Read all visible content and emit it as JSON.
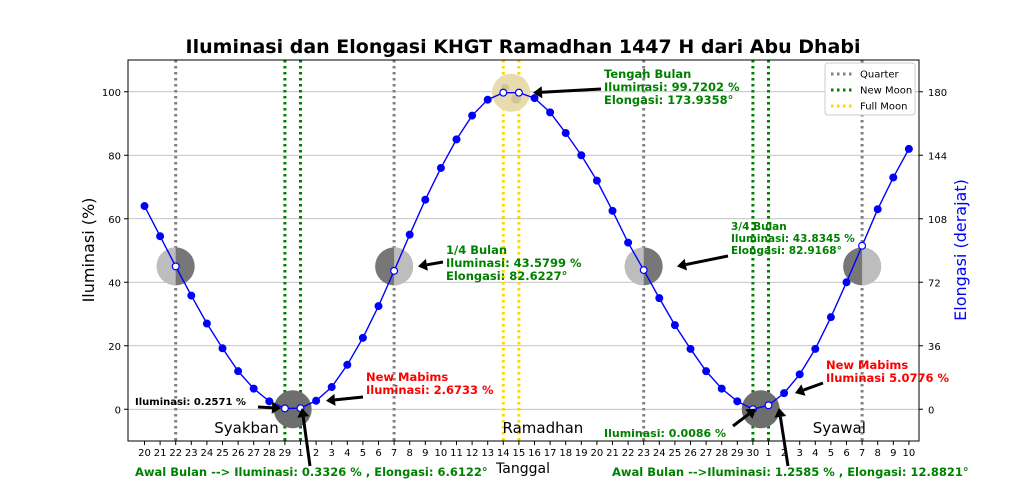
{
  "chart_data": {
    "type": "line",
    "title": "Iluminasi dan Elongasi KHGT Ramadhan 1447 H dari Abu Dhabi",
    "xlabel": "Tanggal",
    "ylabel": "Iluminasi (%)",
    "y2label": "Elongasi (derajat)",
    "ylim": [
      -10,
      110
    ],
    "y2lim": [
      -18,
      198
    ],
    "yticks": [
      0,
      20,
      40,
      60,
      80,
      100
    ],
    "y2ticks": [
      0,
      36,
      72,
      108,
      144,
      180
    ],
    "grid": "horizontal",
    "legend_position": "top-right",
    "x_tick_labels": [
      "20",
      "21",
      "22",
      "23",
      "24",
      "25",
      "26",
      "27",
      "28",
      "29",
      "1",
      "2",
      "3",
      "4",
      "5",
      "6",
      "7",
      "8",
      "9",
      "10",
      "11",
      "12",
      "13",
      "14",
      "15",
      "16",
      "17",
      "18",
      "19",
      "20",
      "21",
      "22",
      "23",
      "24",
      "25",
      "26",
      "27",
      "28",
      "29",
      "30",
      "1",
      "2",
      "3",
      "4",
      "5",
      "6",
      "7",
      "8",
      "9",
      "10"
    ],
    "series": [
      {
        "color": "#0000ff",
        "values": [
          64.0,
          54.5,
          45.0,
          35.8,
          27.0,
          19.2,
          12.0,
          6.5,
          2.5,
          0.2571,
          0.3326,
          2.6733,
          7.0,
          14.0,
          22.5,
          32.5,
          43.5799,
          55.0,
          66.0,
          76.0,
          85.0,
          92.5,
          97.5,
          99.7202,
          99.7202,
          98.0,
          93.5,
          87.0,
          80.0,
          72.0,
          62.5,
          52.5,
          43.8345,
          35.0,
          26.5,
          19.0,
          12.0,
          6.5,
          2.5,
          0.0086,
          1.2585,
          5.0776,
          11.0,
          19.0,
          29.0,
          40.0,
          51.5,
          63.0,
          73.0,
          82.0
        ]
      }
    ],
    "vlines": [
      {
        "legend": "Quarter",
        "color": "#808080",
        "x": [
          2,
          16,
          32,
          46
        ]
      },
      {
        "legend": "New Moon",
        "color": "#008000",
        "x": [
          9,
          10,
          39,
          40
        ]
      },
      {
        "legend": "Full Moon",
        "color": "#ffd700",
        "x": [
          23,
          24
        ]
      }
    ],
    "month_labels": [
      {
        "text": "Syakban",
        "x": 5
      },
      {
        "text": "Ramadhan",
        "x": 24
      },
      {
        "text": "Syawal",
        "x": 43
      }
    ],
    "moon_phases": [
      {
        "x": 2,
        "y": 45,
        "phase": "waning-crescent"
      },
      {
        "x": 9.5,
        "y": 0,
        "phase": "new"
      },
      {
        "x": 16,
        "y": 45,
        "phase": "first-quarter"
      },
      {
        "x": 23.5,
        "y": 99.7,
        "phase": "full"
      },
      {
        "x": 32,
        "y": 45,
        "phase": "last-quarter"
      },
      {
        "x": 39.5,
        "y": 0,
        "phase": "new"
      },
      {
        "x": 46,
        "y": 45,
        "phase": "waxing-crescent"
      }
    ],
    "annotations": [
      {
        "lines": [
          "Tengah Bulan",
          "Iluminasi: 99.7202 %",
          "Elongasi: 173.9358°"
        ],
        "color": "#008000"
      },
      {
        "lines": [
          "1/4 Bulan",
          "Iluminasi: 43.5799 %",
          "Elongasi: 82.6227°"
        ],
        "color": "#008000"
      },
      {
        "lines": [
          "3/4 Bulan",
          "Iluminasi: 43.8345 %",
          "Elongasi: 82.9168°"
        ],
        "color": "#008000"
      },
      {
        "lines": [
          "New Mabims",
          "Iluminasi: 2.6733 %"
        ],
        "color": "#ff0000"
      },
      {
        "lines": [
          "New Mabims",
          "Iluminasi 5.0776 %"
        ],
        "color": "#ff0000"
      },
      {
        "lines": [
          "Iluminasi: 0.2571 %"
        ],
        "color": "#000000"
      },
      {
        "lines": [
          "Iluminasi: 0.0086 %"
        ],
        "color": "#008000"
      },
      {
        "lines": [
          "Awal Bulan --> Iluminasi: 0.3326 % , Elongasi: 6.6122°"
        ],
        "color": "#008000"
      },
      {
        "lines": [
          "Awal Bulan -->Iluminasi: 1.2585 % , Elongasi: 12.8821°"
        ],
        "color": "#008000"
      }
    ]
  }
}
